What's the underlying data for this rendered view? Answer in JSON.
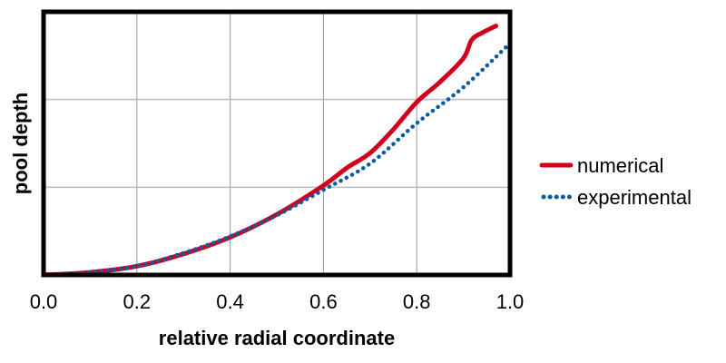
{
  "chart_data": {
    "type": "line",
    "title": "",
    "xlabel": "relative radial coordinate",
    "ylabel": "pool depth",
    "xlim": [
      0,
      1
    ],
    "ylim": [
      0,
      3
    ],
    "x_ticks": [
      "0.0",
      "0.2",
      "0.4",
      "0.6",
      "0.8",
      "1.0"
    ],
    "x_tick_values": [
      0,
      0.2,
      0.4,
      0.6,
      0.8,
      1.0
    ],
    "y_gridlines": [
      1,
      2
    ],
    "y_tick_labels_shown": false,
    "grid": true,
    "legend_position": "right",
    "series": [
      {
        "name": "numerical",
        "color": "#d0021b",
        "style": "solid",
        "x": [
          0,
          0.1,
          0.2,
          0.3,
          0.4,
          0.5,
          0.6,
          0.65,
          0.7,
          0.75,
          0.8,
          0.85,
          0.9,
          0.918,
          0.94,
          0.97
        ],
        "y": [
          0,
          0.03,
          0.1,
          0.24,
          0.43,
          0.69,
          1.02,
          1.22,
          1.39,
          1.66,
          1.97,
          2.2,
          2.47,
          2.68,
          2.76,
          2.84
        ]
      },
      {
        "name": "experimental",
        "color": "#0b5aa8",
        "style": "dotted",
        "x": [
          0,
          0.1,
          0.2,
          0.3,
          0.4,
          0.5,
          0.6,
          0.7,
          0.8,
          0.9,
          1.0
        ],
        "y": [
          0,
          0.03,
          0.1,
          0.25,
          0.44,
          0.68,
          0.97,
          1.27,
          1.73,
          2.14,
          2.64
        ]
      }
    ]
  }
}
